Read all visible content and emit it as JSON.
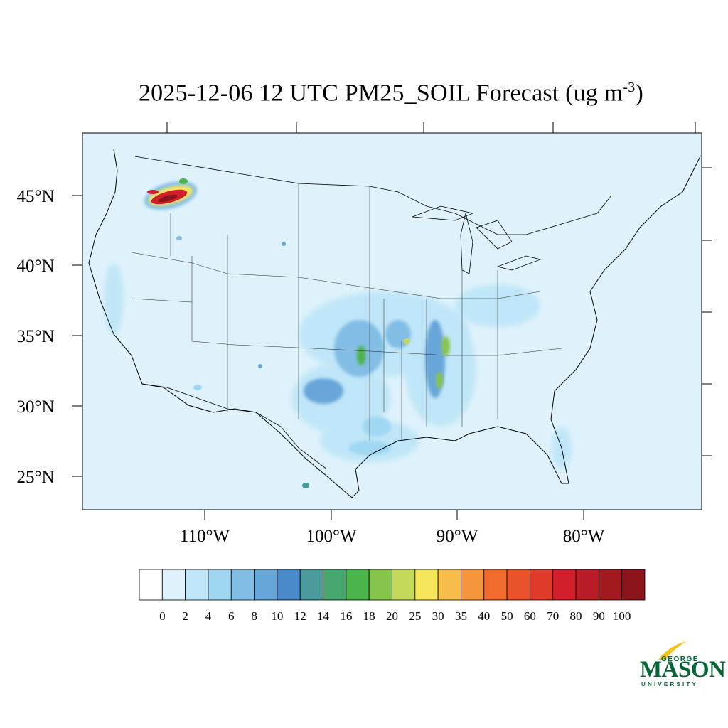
{
  "title": {
    "main": "2025-12-06 12 UTC PM25_SOIL Forecast (ug m",
    "sup": "-3",
    "close": ")"
  },
  "map": {
    "lat_labels": [
      "45°N",
      "40°N",
      "35°N",
      "30°N",
      "25°N"
    ],
    "lon_labels": [
      "110°W",
      "100°W",
      "90°W",
      "80°W"
    ],
    "background_color": "#dff2fb",
    "hotspots": [
      {
        "name": "plume-northwest",
        "level": "50-100"
      },
      {
        "name": "central-plains",
        "level": "8-18"
      },
      {
        "name": "mississippi-valley",
        "level": "10-25"
      },
      {
        "name": "texas",
        "level": "4-12"
      }
    ]
  },
  "colorbar": {
    "levels": [
      "0",
      "2",
      "4",
      "6",
      "8",
      "10",
      "12",
      "14",
      "16",
      "18",
      "20",
      "25",
      "30",
      "35",
      "40",
      "50",
      "60",
      "70",
      "80",
      "90",
      "100"
    ],
    "colors": [
      "#ffffff",
      "#dff2fb",
      "#bfe6f8",
      "#9fd7f3",
      "#82bde5",
      "#67a6d9",
      "#4a8ac8",
      "#4a9a9c",
      "#47a76e",
      "#4bb44a",
      "#86c54c",
      "#c4d85a",
      "#f6e65b",
      "#f7bd4a",
      "#f5963d",
      "#f26b2e",
      "#e9522b",
      "#df3a2a",
      "#d21f2b",
      "#b81c26",
      "#a11a20",
      "#8c151b"
    ]
  },
  "logo": {
    "top": "GEORGE",
    "main": "MASON",
    "sub": "UNIVERSITY"
  }
}
